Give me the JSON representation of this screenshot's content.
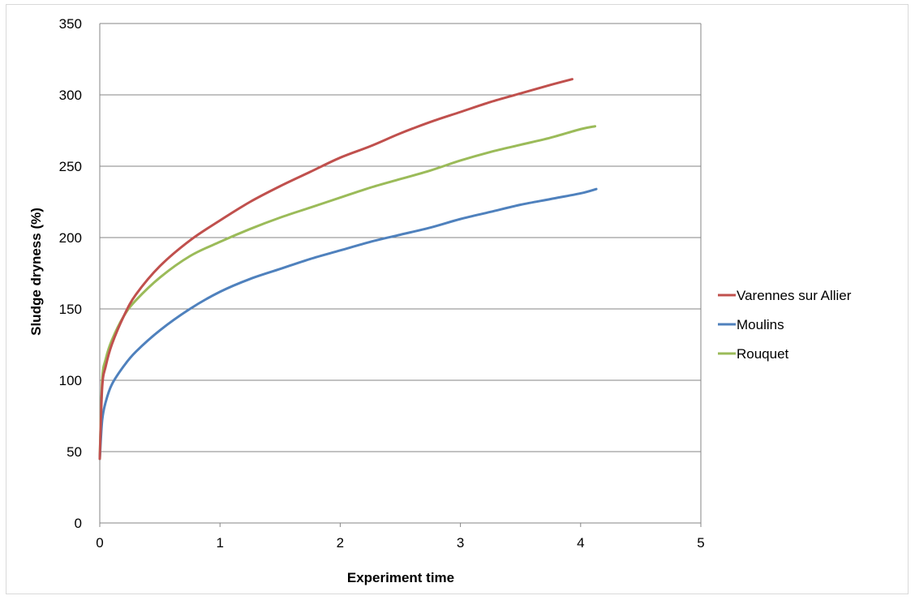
{
  "chart_data": {
    "type": "line",
    "title": "",
    "xlabel": "Experiment time",
    "ylabel": "Sludge dryness (%)",
    "xlim": [
      0,
      5
    ],
    "ylim": [
      0,
      350
    ],
    "xticks": [
      "0",
      "1",
      "2",
      "3",
      "4",
      "5"
    ],
    "yticks": [
      "0",
      "50",
      "100",
      "150",
      "200",
      "250",
      "300",
      "350"
    ],
    "grid": "horizontal",
    "legend_position": "right",
    "series": [
      {
        "name": "Varennes sur Allier",
        "color": "#c0504d",
        "x": [
          0,
          0.02,
          0.05,
          0.1,
          0.2,
          0.3,
          0.5,
          0.75,
          1,
          1.25,
          1.5,
          1.75,
          2,
          2.25,
          2.5,
          2.75,
          3,
          3.25,
          3.5,
          3.75,
          3.93
        ],
        "y": [
          45,
          95,
          110,
          125,
          145,
          160,
          180,
          198,
          212,
          225,
          236,
          246,
          256,
          264,
          273,
          281,
          288,
          295,
          301,
          307,
          311
        ]
      },
      {
        "name": "Moulins",
        "color": "#4f81bd",
        "x": [
          0,
          0.02,
          0.05,
          0.1,
          0.2,
          0.3,
          0.5,
          0.75,
          1,
          1.25,
          1.5,
          1.75,
          2,
          2.25,
          2.5,
          2.75,
          3,
          3.25,
          3.5,
          3.75,
          4,
          4.13
        ],
        "y": [
          45,
          72,
          85,
          97,
          110,
          120,
          135,
          150,
          162,
          171,
          178,
          185,
          191,
          197,
          202,
          207,
          213,
          218,
          223,
          227,
          231,
          234
        ]
      },
      {
        "name": "Rouquet",
        "color": "#9bbb59",
        "x": [
          0,
          0.02,
          0.05,
          0.1,
          0.2,
          0.3,
          0.5,
          0.75,
          1,
          1.25,
          1.5,
          1.75,
          2,
          2.25,
          2.5,
          2.75,
          3,
          3.25,
          3.5,
          3.75,
          4,
          4.12
        ],
        "y": [
          45,
          100,
          115,
          128,
          145,
          156,
          172,
          187,
          197,
          206,
          214,
          221,
          228,
          235,
          241,
          247,
          254,
          260,
          265,
          270,
          276,
          278
        ]
      }
    ]
  }
}
